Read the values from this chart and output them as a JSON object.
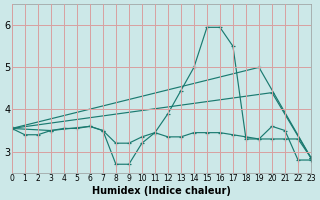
{
  "bg_color": "#cce8e8",
  "line_color": "#1a7a70",
  "grid_color": "#d8a0a0",
  "xlim": [
    0,
    23
  ],
  "ylim": [
    2.5,
    6.5
  ],
  "yticks": [
    3,
    4,
    5,
    6
  ],
  "xticks": [
    0,
    1,
    2,
    3,
    4,
    5,
    6,
    7,
    8,
    9,
    10,
    11,
    12,
    13,
    14,
    15,
    16,
    17,
    18,
    19,
    20,
    21,
    22,
    23
  ],
  "xlabel": "Humidex (Indice chaleur)",
  "lines": [
    {
      "x": [
        0,
        1,
        2,
        3,
        4,
        5,
        6,
        7,
        8,
        9,
        10,
        11,
        12,
        13,
        14,
        15,
        16,
        17,
        18,
        19,
        20,
        21,
        22,
        23
      ],
      "y": [
        3.55,
        3.4,
        3.4,
        3.5,
        3.55,
        3.55,
        3.6,
        3.5,
        3.2,
        3.2,
        3.35,
        3.45,
        3.35,
        3.35,
        3.45,
        3.45,
        3.45,
        3.4,
        3.35,
        3.3,
        3.3,
        3.3,
        3.3,
        2.85
      ]
    },
    {
      "x": [
        0,
        3,
        6,
        7,
        8,
        9,
        10,
        11,
        12,
        13,
        14,
        15,
        16,
        17,
        18,
        19,
        20,
        21,
        22,
        23
      ],
      "y": [
        3.55,
        3.5,
        3.6,
        3.5,
        2.7,
        2.7,
        3.2,
        3.45,
        3.9,
        4.45,
        5.0,
        5.95,
        5.95,
        5.5,
        3.3,
        3.3,
        3.6,
        3.5,
        2.8,
        2.8
      ]
    },
    {
      "x": [
        0,
        19,
        23
      ],
      "y": [
        3.55,
        5.0,
        2.85
      ]
    },
    {
      "x": [
        0,
        20,
        23
      ],
      "y": [
        3.55,
        4.4,
        2.85
      ]
    }
  ]
}
